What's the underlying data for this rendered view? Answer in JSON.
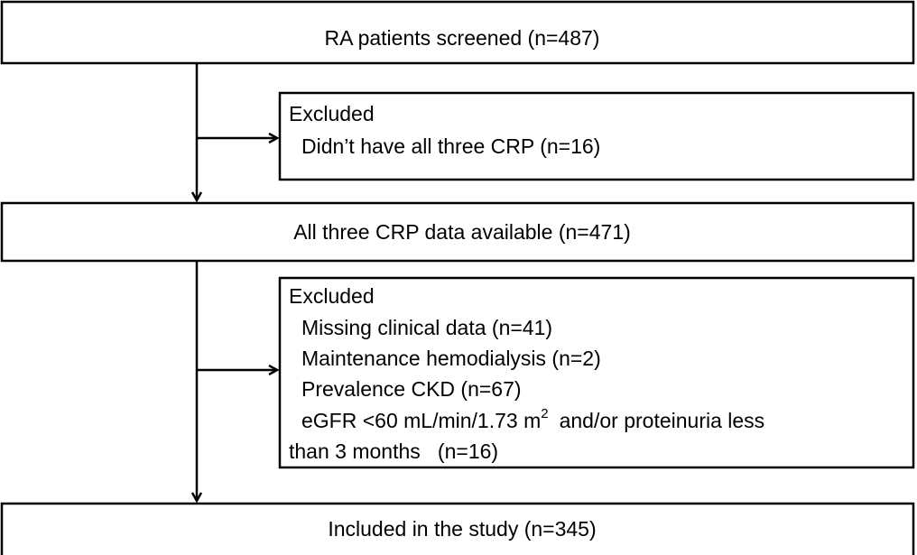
{
  "nodes": [
    {
      "label": "RA patients screened (n=487)"
    },
    {
      "label": "All three CRP data available (n=471)"
    },
    {
      "label": "Included in the study (n=345)"
    }
  ],
  "exclusions": [
    {
      "title": "Excluded",
      "items": [
        "Didn’t have all three CRP (n=16)"
      ]
    },
    {
      "title": "Excluded",
      "items": [
        "Missing clinical data (n=41)",
        "Maintenance hemodialysis (n=2)",
        "Prevalence CKD (n=67)"
      ],
      "note": {
        "parts": [
          "eGFR <60 mL/min/1.73 m",
          "2",
          "and/or proteinuria less"
        ],
        "continuation": "than 3 months   (n=16)"
      }
    }
  ]
}
